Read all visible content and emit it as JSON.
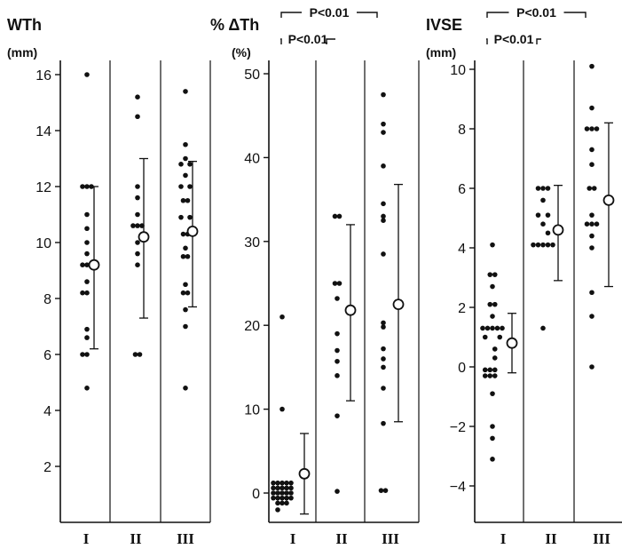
{
  "chart_data": [
    {
      "type": "scatter",
      "title": "WTh",
      "unit": "(mm)",
      "ylim": [
        3.8,
        16.7
      ],
      "yticks": [
        2,
        4,
        6,
        8,
        10,
        12,
        14,
        16
      ],
      "categories": [
        "I",
        "II",
        "III"
      ],
      "groups": [
        {
          "category": "I",
          "points": [
            {
              "y": 16.0,
              "c": 0
            },
            {
              "y": 12.0,
              "c": -1
            },
            {
              "y": 12.0,
              "c": 0
            },
            {
              "y": 12.0,
              "c": 1
            },
            {
              "y": 11.0,
              "c": 0
            },
            {
              "y": 10.5,
              "c": 0
            },
            {
              "y": 10.0,
              "c": 0
            },
            {
              "y": 9.6,
              "c": 0
            },
            {
              "y": 9.2,
              "c": -1
            },
            {
              "y": 9.2,
              "c": 0
            },
            {
              "y": 8.6,
              "c": 0
            },
            {
              "y": 8.2,
              "c": -1
            },
            {
              "y": 8.2,
              "c": 0
            },
            {
              "y": 6.9,
              "c": 0
            },
            {
              "y": 6.6,
              "c": 0
            },
            {
              "y": 6.0,
              "c": -1
            },
            {
              "y": 6.0,
              "c": 0
            },
            {
              "y": 4.8,
              "c": 0
            }
          ],
          "mean": 9.2,
          "sd_low": 6.2,
          "sd_high": 12.0
        },
        {
          "category": "II",
          "points": [
            {
              "y": 15.2,
              "c": 0
            },
            {
              "y": 14.5,
              "c": 0
            },
            {
              "y": 12.0,
              "c": 0
            },
            {
              "y": 11.6,
              "c": 0
            },
            {
              "y": 11.0,
              "c": 0
            },
            {
              "y": 10.6,
              "c": -1
            },
            {
              "y": 10.6,
              "c": 0
            },
            {
              "y": 10.6,
              "c": 1
            },
            {
              "y": 10.0,
              "c": 0
            },
            {
              "y": 9.6,
              "c": 0
            },
            {
              "y": 9.2,
              "c": 0
            },
            {
              "y": 6.0,
              "c": -0.5
            },
            {
              "y": 6.0,
              "c": 0.5
            }
          ],
          "mean": 10.2,
          "sd_low": 7.3,
          "sd_high": 13.0
        },
        {
          "category": "III",
          "points": [
            {
              "y": 15.4,
              "c": 0
            },
            {
              "y": 13.5,
              "c": 0
            },
            {
              "y": 13.0,
              "c": 0
            },
            {
              "y": 12.8,
              "c": -1
            },
            {
              "y": 12.8,
              "c": 1
            },
            {
              "y": 12.4,
              "c": 0
            },
            {
              "y": 12.0,
              "c": -1
            },
            {
              "y": 12.0,
              "c": 1
            },
            {
              "y": 11.5,
              "c": -0.5
            },
            {
              "y": 11.5,
              "c": 0.5
            },
            {
              "y": 10.9,
              "c": -1
            },
            {
              "y": 10.9,
              "c": 1
            },
            {
              "y": 10.3,
              "c": -0.5
            },
            {
              "y": 10.3,
              "c": 0.5
            },
            {
              "y": 9.8,
              "c": 0
            },
            {
              "y": 9.5,
              "c": -0.5
            },
            {
              "y": 9.5,
              "c": 0.5
            },
            {
              "y": 8.5,
              "c": 0
            },
            {
              "y": 8.2,
              "c": -0.5
            },
            {
              "y": 8.2,
              "c": 0.5
            },
            {
              "y": 7.6,
              "c": 0
            },
            {
              "y": 7.0,
              "c": 0
            },
            {
              "y": 4.8,
              "c": 0
            }
          ],
          "mean": 10.4,
          "sd_low": 7.7,
          "sd_high": 12.9
        }
      ]
    },
    {
      "type": "scatter",
      "title": "% ΔTh",
      "unit": "(%)",
      "ylim": [
        -3.5,
        53
      ],
      "yticks": [
        0,
        10,
        20,
        30,
        40,
        50
      ],
      "categories": [
        "I",
        "II",
        "III"
      ],
      "significance": [
        {
          "label": "P<0.01",
          "from": "I",
          "to": "III"
        },
        {
          "label": "P<0.01",
          "from": "I",
          "to": "I"
        }
      ],
      "groups": [
        {
          "category": "I",
          "points": [
            {
              "y": 21.0,
              "c": 0
            },
            {
              "y": 10.0,
              "c": 0
            },
            {
              "y": 1.2,
              "c": -2
            },
            {
              "y": 1.2,
              "c": -1
            },
            {
              "y": 1.2,
              "c": 0
            },
            {
              "y": 1.2,
              "c": 1
            },
            {
              "y": 1.2,
              "c": 2
            },
            {
              "y": 0.6,
              "c": -2
            },
            {
              "y": 0.6,
              "c": -1
            },
            {
              "y": 0.6,
              "c": 0
            },
            {
              "y": 0.6,
              "c": 1
            },
            {
              "y": 0.6,
              "c": 2
            },
            {
              "y": 0.0,
              "c": -2
            },
            {
              "y": 0.0,
              "c": -1
            },
            {
              "y": 0.0,
              "c": 0
            },
            {
              "y": 0.0,
              "c": 1
            },
            {
              "y": 0.0,
              "c": 2
            },
            {
              "y": -0.6,
              "c": -2
            },
            {
              "y": -0.6,
              "c": -1
            },
            {
              "y": -0.6,
              "c": 0
            },
            {
              "y": -0.6,
              "c": 1
            },
            {
              "y": -0.6,
              "c": 2
            },
            {
              "y": -1.2,
              "c": -1
            },
            {
              "y": -1.2,
              "c": 0
            },
            {
              "y": -1.2,
              "c": 1
            },
            {
              "y": -2.0,
              "c": -1
            }
          ],
          "mean": 2.3,
          "sd_low": -2.5,
          "sd_high": 7.1
        },
        {
          "category": "II",
          "points": [
            {
              "y": 33.0,
              "c": -0.5
            },
            {
              "y": 33.0,
              "c": 0.5
            },
            {
              "y": 25.0,
              "c": -0.5
            },
            {
              "y": 25.0,
              "c": 0.5
            },
            {
              "y": 23.2,
              "c": 0
            },
            {
              "y": 19.0,
              "c": 0
            },
            {
              "y": 17.0,
              "c": 0
            },
            {
              "y": 15.7,
              "c": 0
            },
            {
              "y": 14.0,
              "c": 0
            },
            {
              "y": 9.2,
              "c": 0
            },
            {
              "y": 0.2,
              "c": 0
            }
          ],
          "mean": 21.8,
          "sd_low": 11.0,
          "sd_high": 32.0
        },
        {
          "category": "III",
          "points": [
            {
              "y": 47.5,
              "c": 0
            },
            {
              "y": 44.0,
              "c": 0
            },
            {
              "y": 43.0,
              "c": 0
            },
            {
              "y": 39.0,
              "c": 0
            },
            {
              "y": 34.5,
              "c": 0
            },
            {
              "y": 33.0,
              "c": 0
            },
            {
              "y": 32.5,
              "c": 0
            },
            {
              "y": 28.5,
              "c": 0
            },
            {
              "y": 20.3,
              "c": 0
            },
            {
              "y": 19.8,
              "c": 0
            },
            {
              "y": 17.2,
              "c": 0
            },
            {
              "y": 16.0,
              "c": 0
            },
            {
              "y": 15.0,
              "c": 0
            },
            {
              "y": 12.5,
              "c": 0
            },
            {
              "y": 8.3,
              "c": 0
            },
            {
              "y": 0.3,
              "c": -0.5
            },
            {
              "y": 0.3,
              "c": 0.5
            }
          ],
          "mean": 22.5,
          "sd_low": 8.5,
          "sd_high": 36.8
        }
      ]
    },
    {
      "type": "scatter",
      "title": "IVSE",
      "unit": "(mm)",
      "ylim": [
        -6.7,
        10.6
      ],
      "yticks": [
        -4,
        -2,
        0,
        2,
        4,
        6,
        8,
        10
      ],
      "categories": [
        "I",
        "II",
        "III"
      ],
      "significance": [
        {
          "label": "P<0.01",
          "from": "I",
          "to": "III"
        },
        {
          "label": "P<0.01",
          "from": "I",
          "to": "I"
        }
      ],
      "groups": [
        {
          "category": "I",
          "points": [
            {
              "y": 4.1,
              "c": 0
            },
            {
              "y": 3.1,
              "c": -0.5
            },
            {
              "y": 3.1,
              "c": 0.5
            },
            {
              "y": 2.7,
              "c": 0
            },
            {
              "y": 2.1,
              "c": -0.5
            },
            {
              "y": 2.1,
              "c": 0.5
            },
            {
              "y": 1.7,
              "c": 0
            },
            {
              "y": 1.3,
              "c": -2
            },
            {
              "y": 1.3,
              "c": -1
            },
            {
              "y": 1.3,
              "c": 0
            },
            {
              "y": 1.3,
              "c": 1
            },
            {
              "y": 1.3,
              "c": 2
            },
            {
              "y": 1.0,
              "c": -1.5
            },
            {
              "y": 1.0,
              "c": 1.5
            },
            {
              "y": 0.6,
              "c": 0.5
            },
            {
              "y": 0.3,
              "c": 0.5
            },
            {
              "y": -0.1,
              "c": -1.5
            },
            {
              "y": -0.1,
              "c": -0.5
            },
            {
              "y": -0.1,
              "c": 0.5
            },
            {
              "y": -0.3,
              "c": -1.5
            },
            {
              "y": -0.3,
              "c": -0.5
            },
            {
              "y": -0.3,
              "c": 0.5
            },
            {
              "y": -0.9,
              "c": 0
            },
            {
              "y": -2.0,
              "c": 0
            },
            {
              "y": -2.4,
              "c": 0
            },
            {
              "y": -3.1,
              "c": 0
            }
          ],
          "mean": 0.8,
          "sd_low": -0.2,
          "sd_high": 1.8
        },
        {
          "category": "II",
          "points": [
            {
              "y": 6.0,
              "c": -1
            },
            {
              "y": 6.0,
              "c": 0
            },
            {
              "y": 6.0,
              "c": 1
            },
            {
              "y": 5.6,
              "c": 0
            },
            {
              "y": 5.1,
              "c": -1
            },
            {
              "y": 5.1,
              "c": 1
            },
            {
              "y": 4.8,
              "c": 0
            },
            {
              "y": 4.5,
              "c": 1
            },
            {
              "y": 4.1,
              "c": -2
            },
            {
              "y": 4.1,
              "c": -1
            },
            {
              "y": 4.1,
              "c": 0
            },
            {
              "y": 4.1,
              "c": 1
            },
            {
              "y": 4.1,
              "c": 2
            },
            {
              "y": 1.3,
              "c": 0
            }
          ],
          "mean": 4.6,
          "sd_low": 2.9,
          "sd_high": 6.1
        },
        {
          "category": "III",
          "points": [
            {
              "y": 10.1,
              "c": 0
            },
            {
              "y": 8.7,
              "c": 0
            },
            {
              "y": 8.0,
              "c": -1
            },
            {
              "y": 8.0,
              "c": 0
            },
            {
              "y": 8.0,
              "c": 1
            },
            {
              "y": 7.3,
              "c": 0
            },
            {
              "y": 6.8,
              "c": 0
            },
            {
              "y": 6.0,
              "c": -0.5
            },
            {
              "y": 6.0,
              "c": 0.5
            },
            {
              "y": 5.1,
              "c": 0
            },
            {
              "y": 4.8,
              "c": -1
            },
            {
              "y": 4.8,
              "c": 0
            },
            {
              "y": 4.8,
              "c": 1
            },
            {
              "y": 4.4,
              "c": 0
            },
            {
              "y": 4.0,
              "c": 0
            },
            {
              "y": 2.5,
              "c": 0
            },
            {
              "y": 1.7,
              "c": 0
            },
            {
              "y": 0.0,
              "c": 0
            }
          ],
          "mean": 5.6,
          "sd_low": 2.7,
          "sd_high": 8.2
        }
      ]
    }
  ]
}
